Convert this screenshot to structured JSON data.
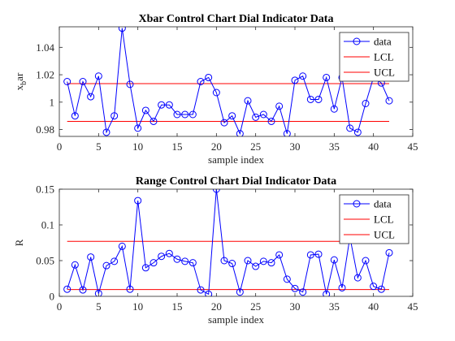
{
  "chart_data": [
    {
      "type": "line",
      "title": "Xbar Control Chart Dial Indicator Data",
      "xlabel": "sample index",
      "ylabel_main": "x",
      "ylabel_sub": "b",
      "ylabel_tail": "ar",
      "xlim": [
        0,
        45
      ],
      "ylim": [
        0.975,
        1.055
      ],
      "xticks": [
        0,
        5,
        10,
        15,
        20,
        25,
        30,
        35,
        40,
        45
      ],
      "xtick_labels": [
        "0",
        "5",
        "10",
        "15",
        "20",
        "25",
        "30",
        "35",
        "40",
        "45"
      ],
      "yticks": [
        0.98,
        1.0,
        1.02,
        1.04
      ],
      "ytick_labels": [
        "0.98",
        "1",
        "1.02",
        "1.04"
      ],
      "legend_position": "top-right",
      "series": [
        {
          "name": "data",
          "color": "#0000ff",
          "marker": "circle",
          "x": [
            1,
            2,
            3,
            4,
            5,
            6,
            7,
            8,
            9,
            10,
            11,
            12,
            13,
            14,
            15,
            16,
            17,
            18,
            19,
            20,
            21,
            22,
            23,
            24,
            25,
            26,
            27,
            28,
            29,
            30,
            31,
            32,
            33,
            34,
            35,
            36,
            37,
            38,
            39,
            40,
            41,
            42
          ],
          "y": [
            1.015,
            0.99,
            1.015,
            1.004,
            1.019,
            0.978,
            0.99,
            1.054,
            1.013,
            0.981,
            0.994,
            0.986,
            0.998,
            0.998,
            0.991,
            0.991,
            0.991,
            1.015,
            1.018,
            1.007,
            0.985,
            0.99,
            0.977,
            1.001,
            0.989,
            0.991,
            0.986,
            0.997,
            0.977,
            1.016,
            1.019,
            1.002,
            1.002,
            1.018,
            0.995,
            1.018,
            0.981,
            0.978,
            0.999,
            1.018,
            1.014,
            1.001
          ]
        },
        {
          "name": "LCL",
          "color": "#ff0000",
          "x": [
            1,
            42
          ],
          "y": [
            0.986,
            0.986
          ]
        },
        {
          "name": "UCL",
          "color": "#ff0000",
          "x": [
            1,
            42
          ],
          "y": [
            1.0135,
            1.0135
          ]
        }
      ]
    },
    {
      "type": "line",
      "title": "Range Control Chart Dial Indicator Data",
      "xlabel": "sample index",
      "ylabel": "R",
      "xlim": [
        0,
        45
      ],
      "ylim": [
        0,
        0.15
      ],
      "xticks": [
        0,
        5,
        10,
        15,
        20,
        25,
        30,
        35,
        40,
        45
      ],
      "xtick_labels": [
        "0",
        "5",
        "10",
        "15",
        "20",
        "25",
        "30",
        "35",
        "40",
        "45"
      ],
      "yticks": [
        0,
        0.05,
        0.1,
        0.15
      ],
      "ytick_labels": [
        "0",
        "0.05",
        "0.1",
        "0.15"
      ],
      "legend_position": "top-right",
      "series": [
        {
          "name": "data",
          "color": "#0000ff",
          "marker": "circle",
          "x": [
            1,
            2,
            3,
            4,
            5,
            6,
            7,
            8,
            9,
            10,
            11,
            12,
            13,
            14,
            15,
            16,
            17,
            18,
            19,
            20,
            21,
            22,
            23,
            24,
            25,
            26,
            27,
            28,
            29,
            30,
            31,
            32,
            33,
            34,
            35,
            36,
            37,
            38,
            39,
            40,
            41,
            42
          ],
          "y": [
            0.01,
            0.044,
            0.009,
            0.055,
            0.004,
            0.043,
            0.049,
            0.07,
            0.01,
            0.134,
            0.04,
            0.047,
            0.056,
            0.06,
            0.052,
            0.049,
            0.047,
            0.009,
            0.003,
            0.15,
            0.05,
            0.046,
            0.006,
            0.05,
            0.042,
            0.049,
            0.047,
            0.058,
            0.024,
            0.011,
            0.006,
            0.058,
            0.059,
            0.003,
            0.051,
            0.012,
            0.083,
            0.026,
            0.05,
            0.014,
            0.01,
            0.061
          ]
        },
        {
          "name": "LCL",
          "color": "#ff0000",
          "x": [
            1,
            42
          ],
          "y": [
            0.0095,
            0.0095
          ]
        },
        {
          "name": "UCL",
          "color": "#ff0000",
          "x": [
            1,
            42
          ],
          "y": [
            0.077,
            0.077
          ]
        }
      ]
    }
  ]
}
